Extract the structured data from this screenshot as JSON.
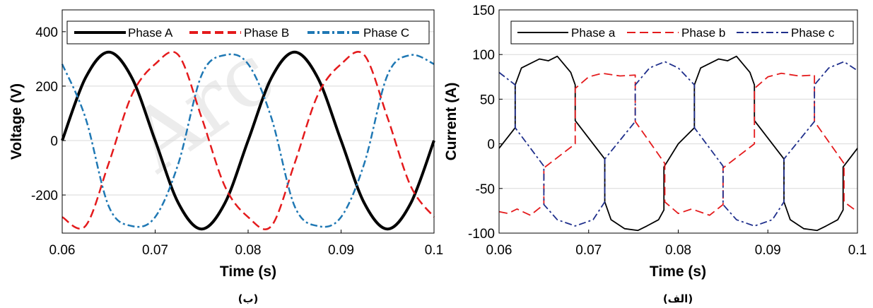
{
  "watermark": "Arc",
  "colors": {
    "phaseA": "#000000",
    "phaseB": "#e41a1c",
    "phaseC": "#1f78b4",
    "phaseCcur": "#1f2f8c",
    "grid": "#d9d9d9"
  },
  "chart_data": [
    {
      "type": "line",
      "caption": "(ب)",
      "xlabel": "Time (s)",
      "ylabel": "Voltage (V)",
      "xlim": [
        0.06,
        0.1
      ],
      "ylim": [
        -340,
        480
      ],
      "xticks": [
        0.06,
        0.07,
        0.08,
        0.09,
        0.1
      ],
      "xticklabels": [
        "0.06",
        "0.07",
        "0.08",
        "0.09",
        "0.1"
      ],
      "yticks": [
        -200,
        0,
        200,
        400
      ],
      "yticklabels": [
        "-200",
        "0",
        "200",
        "400"
      ],
      "grid": "horizontal",
      "legend_position": "top",
      "series": [
        {
          "name": "Phase A",
          "style": "solid",
          "x": [
            0.06,
            0.0625,
            0.065,
            0.0675,
            0.07,
            0.0725,
            0.075,
            0.0775,
            0.08,
            0.0825,
            0.085,
            0.0875,
            0.09,
            0.0925,
            0.095,
            0.0975,
            0.1
          ],
          "values": [
            0,
            230,
            325,
            230,
            0,
            -230,
            -325,
            -230,
            0,
            230,
            325,
            230,
            0,
            -230,
            -325,
            -230,
            0
          ]
        },
        {
          "name": "Phase B",
          "style": "dashed",
          "x": [
            0.06,
            0.0625,
            0.065,
            0.0675,
            0.07,
            0.0725,
            0.075,
            0.0775,
            0.08,
            0.0825,
            0.085,
            0.0875,
            0.09,
            0.0925,
            0.095,
            0.0975,
            0.1
          ],
          "values": [
            -281,
            -314,
            -84,
            168,
            281,
            314,
            84,
            -168,
            -281,
            -314,
            -84,
            168,
            281,
            314,
            84,
            -168,
            -281
          ]
        },
        {
          "name": "Phase C",
          "style": "dashdot",
          "x": [
            0.06,
            0.0625,
            0.065,
            0.0675,
            0.07,
            0.0725,
            0.075,
            0.0775,
            0.08,
            0.0825,
            0.085,
            0.0875,
            0.09,
            0.0925,
            0.095,
            0.0975,
            0.1
          ],
          "values": [
            281,
            84,
            -241,
            -314,
            -281,
            -84,
            241,
            314,
            281,
            84,
            -241,
            -314,
            -281,
            -84,
            241,
            314,
            281
          ]
        }
      ]
    },
    {
      "type": "line",
      "caption": "(الف)",
      "xlabel": "Time (s)",
      "ylabel": "Current (A)",
      "xlim": [
        0.06,
        0.1
      ],
      "ylim": [
        -100,
        150
      ],
      "xticks": [
        0.06,
        0.07,
        0.08,
        0.09,
        0.1
      ],
      "xticklabels": [
        "0.06",
        "0.07",
        "0.08",
        "0.09",
        "0.1"
      ],
      "yticks": [
        -100,
        -50,
        0,
        50,
        100,
        150
      ],
      "yticklabels": [
        "-100",
        "-50",
        "0",
        "50",
        "100",
        "150"
      ],
      "grid": "horizontal",
      "legend_position": "top",
      "series": [
        {
          "name": "Phase a",
          "style": "solid",
          "x": [
            0.06,
            0.0618,
            0.0618,
            0.0625,
            0.0645,
            0.0655,
            0.0665,
            0.068,
            0.0685,
            0.0685,
            0.0718,
            0.0718,
            0.0725,
            0.074,
            0.0755,
            0.0765,
            0.0778,
            0.0784,
            0.0784,
            0.08,
            0.0818,
            0.0818,
            0.0825,
            0.0845,
            0.0855,
            0.0865,
            0.088,
            0.0885,
            0.0885,
            0.0918,
            0.0918,
            0.0925,
            0.094,
            0.0955,
            0.0965,
            0.0978,
            0.0984,
            0.0984,
            0.1
          ],
          "values": [
            -5,
            18,
            66,
            85,
            95,
            93,
            98,
            80,
            66,
            26,
            -17,
            -65,
            -85,
            -95,
            -97,
            -92,
            -85,
            -74,
            -26,
            0,
            18,
            66,
            85,
            95,
            93,
            98,
            80,
            66,
            26,
            -17,
            -65,
            -85,
            -95,
            -97,
            -92,
            -85,
            -74,
            -26,
            -5
          ]
        },
        {
          "name": "Phase b",
          "style": "dashed",
          "x": [
            0.06,
            0.061,
            0.062,
            0.0635,
            0.065,
            0.065,
            0.0685,
            0.0685,
            0.07,
            0.0715,
            0.0735,
            0.0752,
            0.0752,
            0.0785,
            0.0785,
            0.08,
            0.0815,
            0.0835,
            0.085,
            0.085,
            0.0885,
            0.0885,
            0.09,
            0.0915,
            0.0935,
            0.0952,
            0.0952,
            0.0985,
            0.0985,
            0.1
          ],
          "values": [
            -76,
            -78,
            -73,
            -80,
            -68,
            -27,
            0,
            62,
            75,
            79,
            76,
            77,
            25,
            -22,
            -65,
            -78,
            -73,
            -80,
            -68,
            -27,
            0,
            62,
            75,
            79,
            76,
            77,
            25,
            -22,
            -65,
            -76
          ]
        },
        {
          "name": "Phase c",
          "style": "dashdot",
          "x": [
            0.06,
            0.0618,
            0.0618,
            0.065,
            0.065,
            0.0665,
            0.0685,
            0.0705,
            0.0718,
            0.0718,
            0.0752,
            0.0752,
            0.0768,
            0.0785,
            0.08,
            0.0818,
            0.0818,
            0.085,
            0.085,
            0.0865,
            0.0885,
            0.0905,
            0.0918,
            0.0918,
            0.0952,
            0.0952,
            0.0968,
            0.0985,
            0.1
          ],
          "values": [
            80,
            66,
            18,
            -25,
            -68,
            -85,
            -92,
            -85,
            -65,
            -17,
            25,
            66,
            85,
            92,
            85,
            66,
            18,
            -25,
            -68,
            -85,
            -92,
            -85,
            -65,
            -17,
            25,
            66,
            85,
            92,
            82
          ]
        }
      ]
    }
  ]
}
